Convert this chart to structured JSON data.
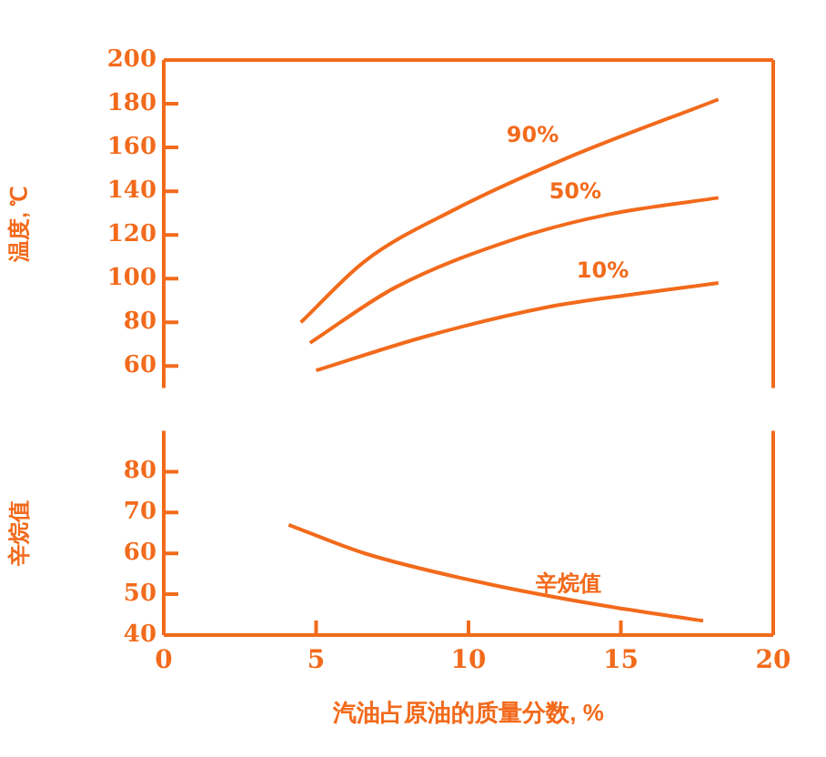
{
  "chart_data": [
    {
      "type": "line",
      "ylabel": "温度, ℃",
      "xlim": [
        0,
        20
      ],
      "xticks": [
        0,
        5,
        10,
        15,
        20
      ],
      "ylim": [
        50,
        200
      ],
      "yticks": [
        60,
        80,
        100,
        120,
        140,
        160,
        180,
        200
      ],
      "tick_labels": "y",
      "grid": false,
      "legend": false,
      "marker": "none",
      "line_style": "solid",
      "series": [
        {
          "name": "90%",
          "color": "#f26a1b",
          "x": [
            4.5,
            6.6,
            9.6,
            13.2,
            18.2
          ],
          "values": [
            80,
            108,
            132,
            155,
            182
          ]
        },
        {
          "name": "50%",
          "color": "#f26a1b",
          "x": [
            4.8,
            7.6,
            11.6,
            14.6,
            18.2
          ],
          "values": [
            70.6,
            96,
            118.5,
            129.4,
            137
          ]
        },
        {
          "name": "10%",
          "color": "#f26a1b",
          "x": [
            5,
            8.6,
            12.6,
            15.5,
            18.2
          ],
          "values": [
            58,
            73.6,
            87,
            93,
            98
          ]
        }
      ]
    },
    {
      "type": "line",
      "ylabel": "辛烷值",
      "xlabel": "汽油占原油的质量分数, %",
      "xlim": [
        0,
        20
      ],
      "xticks": [
        0,
        5,
        10,
        15,
        20
      ],
      "ylim": [
        40,
        90
      ],
      "yticks": [
        40,
        50,
        60,
        70,
        80
      ],
      "grid": false,
      "legend": false,
      "marker": "none",
      "line_style": "solid",
      "series": [
        {
          "name": "辛烷值",
          "color": "#f26a1b",
          "x": [
            4.1,
            6.6,
            10.6,
            14.6,
            17.7
          ],
          "values": [
            67,
            60,
            52.6,
            47,
            43.5
          ]
        }
      ]
    }
  ]
}
